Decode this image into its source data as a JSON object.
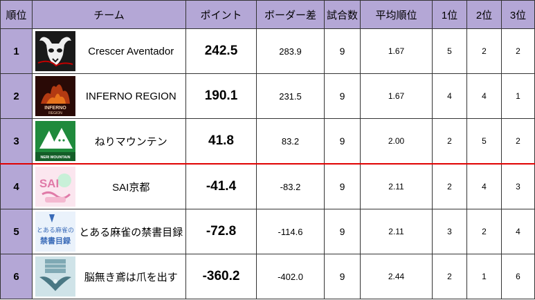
{
  "headers": {
    "rank": "順位",
    "team": "チーム",
    "points": "ポイント",
    "border": "ボーダー差",
    "games": "試合数",
    "avg_rank": "平均順位",
    "first": "1位",
    "second": "2位",
    "third": "3位"
  },
  "colors": {
    "header_bg": "#b4a7d6",
    "cutline": "#e00000"
  },
  "rows": [
    {
      "rank": "1",
      "logo_icon": "bull-skull-icon",
      "team": "Crescer Aventador",
      "points": "242.5",
      "border": "283.9",
      "games": "9",
      "avg_rank": "1.67",
      "first": "5",
      "second": "2",
      "third": "2"
    },
    {
      "rank": "2",
      "logo_icon": "inferno-logo-icon",
      "logo_text": "INFERNO",
      "logo_subtext": "REGION",
      "team": "INFERNO REGION",
      "points": "190.1",
      "border": "231.5",
      "games": "9",
      "avg_rank": "1.67",
      "first": "4",
      "second": "4",
      "third": "1"
    },
    {
      "rank": "3",
      "logo_icon": "mountain-logo-icon",
      "logo_text": "NERI MOUNTAIN",
      "team": "ねりマウンテン",
      "points": "41.8",
      "border": "83.2",
      "games": "9",
      "avg_rank": "2.00",
      "first": "2",
      "second": "5",
      "third": "2"
    },
    {
      "rank": "4",
      "logo_icon": "sai-logo-icon",
      "logo_text": "SAI",
      "team": "SAI京都",
      "points": "-41.4",
      "border": "-83.2",
      "games": "9",
      "avg_rank": "2.11",
      "first": "2",
      "second": "4",
      "third": "3"
    },
    {
      "rank": "5",
      "logo_icon": "index-logo-icon",
      "logo_text": "とある麻雀の",
      "logo_subtext": "禁書目録",
      "team": "とある麻雀の禁書目録",
      "points": "-72.8",
      "border": "-114.6",
      "games": "9",
      "avg_rank": "2.11",
      "first": "3",
      "second": "2",
      "third": "4"
    },
    {
      "rank": "6",
      "logo_icon": "hawk-crest-icon",
      "team": "脳無き鳶は爪を出す",
      "points": "-360.2",
      "border": "-402.0",
      "games": "9",
      "avg_rank": "2.44",
      "first": "2",
      "second": "1",
      "third": "6"
    }
  ]
}
